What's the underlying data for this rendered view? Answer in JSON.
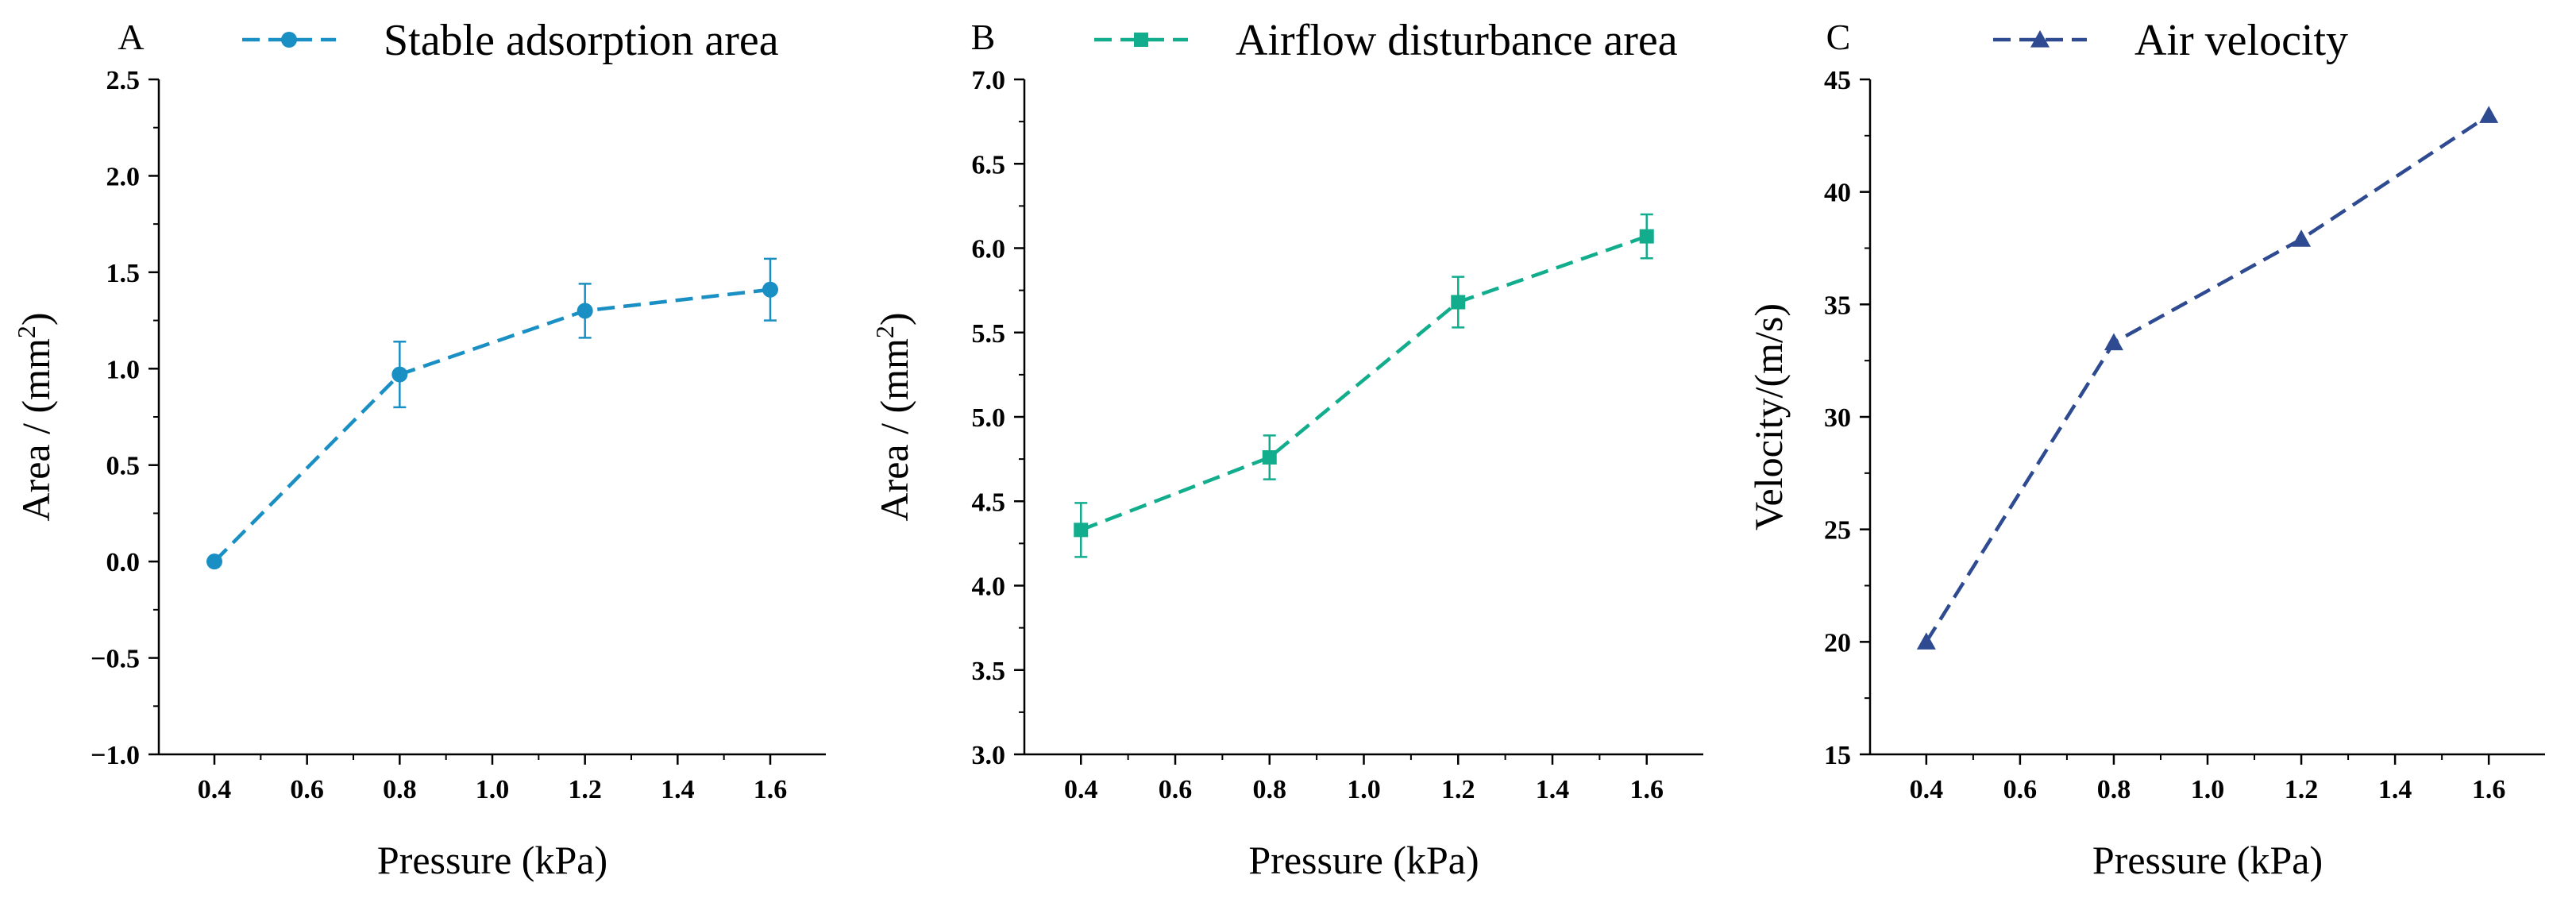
{
  "chart_data": [
    {
      "type": "line",
      "panel_label": "A",
      "title": "",
      "xlabel": "Pressure (kPa)",
      "ylabel_main": "Area / (mm",
      "ylabel_sup": "2",
      "ylabel_end": ")",
      "xlim": [
        0.28,
        1.72
      ],
      "ylim": [
        -1.0,
        2.5
      ],
      "xticks": [
        "0.4",
        "0.6",
        "0.8",
        "1.0",
        "1.2",
        "1.4",
        "1.6"
      ],
      "yticks": [
        "−1.0",
        "−0.5",
        "0.0",
        "0.5",
        "1.0",
        "1.5",
        "2.0",
        "2.5"
      ],
      "legend_position": "top",
      "series": [
        {
          "name": "Stable adsorption area",
          "color": "#1a8fc4",
          "marker": "circle",
          "x": [
            0.4,
            0.8,
            1.2,
            1.6
          ],
          "y": [
            0.0,
            0.97,
            1.3,
            1.41
          ],
          "error": [
            0.0,
            0.17,
            0.14,
            0.16
          ]
        }
      ]
    },
    {
      "type": "line",
      "panel_label": "B",
      "title": "",
      "xlabel": "Pressure (kPa)",
      "ylabel_main": "Area / (mm",
      "ylabel_sup": "2",
      "ylabel_end": ")",
      "xlim": [
        0.28,
        1.72
      ],
      "ylim": [
        3.0,
        7.0
      ],
      "xticks": [
        "0.4",
        "0.6",
        "0.8",
        "1.0",
        "1.2",
        "1.4",
        "1.6"
      ],
      "yticks": [
        "3.0",
        "3.5",
        "4.0",
        "4.5",
        "5.0",
        "5.5",
        "6.0",
        "6.5",
        "7.0"
      ],
      "legend_position": "top",
      "series": [
        {
          "name": "Airflow disturbance area",
          "color": "#12ad8d",
          "marker": "square",
          "x": [
            0.4,
            0.8,
            1.2,
            1.6
          ],
          "y": [
            4.33,
            4.76,
            5.68,
            6.07
          ],
          "error": [
            0.16,
            0.13,
            0.15,
            0.13
          ]
        }
      ]
    },
    {
      "type": "line",
      "panel_label": "C",
      "title": "",
      "xlabel": "Pressure (kPa)",
      "ylabel_main": "Velocity/(m/s)",
      "ylabel_sup": "",
      "ylabel_end": "",
      "xlim": [
        0.28,
        1.72
      ],
      "ylim": [
        15,
        45
      ],
      "xticks": [
        "0.4",
        "0.6",
        "0.8",
        "1.0",
        "1.2",
        "1.4",
        "1.6"
      ],
      "yticks": [
        "15",
        "20",
        "25",
        "30",
        "35",
        "40",
        "45"
      ],
      "legend_position": "top",
      "series": [
        {
          "name": "Air velocity",
          "color": "#2e4a91",
          "marker": "triangle",
          "x": [
            0.4,
            0.8,
            1.2,
            1.6
          ],
          "y": [
            20.0,
            33.3,
            37.9,
            43.4
          ],
          "error": [
            0,
            0,
            0,
            0
          ]
        }
      ]
    }
  ]
}
